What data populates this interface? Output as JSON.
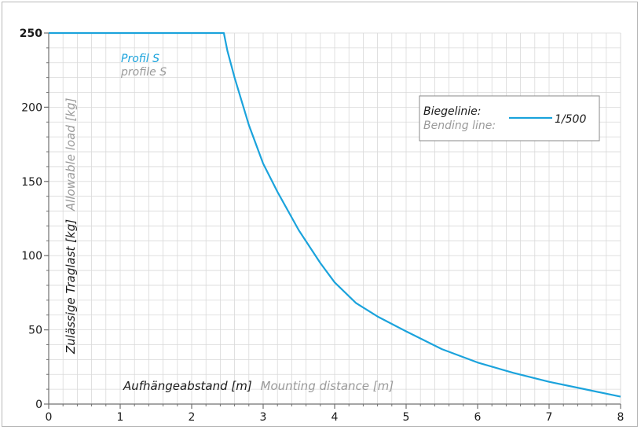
{
  "colors": {
    "series": "#1ba3dc",
    "secondary_text": "#9a9a9a",
    "grid": "#d9d9d9",
    "axis": "#707070"
  },
  "chart_data": {
    "type": "line",
    "xlim": [
      0,
      8
    ],
    "ylim": [
      0,
      250
    ],
    "x_ticks": [
      0,
      1,
      2,
      3,
      4,
      5,
      6,
      7,
      8
    ],
    "y_ticks": [
      0,
      50,
      100,
      150,
      200,
      250
    ],
    "highlight_y_tick": "250",
    "grid": true,
    "xlabel": {
      "primary": "Aufhängeabstand [m]",
      "secondary": "Mounting distance [m]"
    },
    "ylabel": {
      "primary": "Zulässige Traglast [kg]",
      "secondary": "Allowable load [kg]"
    },
    "series_label": {
      "primary": "Profil S",
      "secondary": "profile S"
    },
    "legend": {
      "title_primary": "Biegelinie:",
      "title_secondary": "Bending line:",
      "entry": "1/500",
      "position": "top-right"
    },
    "series": [
      {
        "name": "1/500",
        "x": [
          0,
          2.4,
          2.45,
          2.5,
          2.6,
          2.8,
          3.0,
          3.2,
          3.5,
          3.8,
          4.0,
          4.3,
          4.6,
          5.0,
          5.5,
          6.0,
          6.5,
          7.0,
          7.5,
          8.0
        ],
        "y": [
          250,
          250,
          250,
          238,
          220,
          188,
          162,
          143,
          117,
          95,
          82,
          68,
          59,
          49,
          37,
          28,
          21,
          15,
          10,
          5
        ]
      }
    ]
  }
}
